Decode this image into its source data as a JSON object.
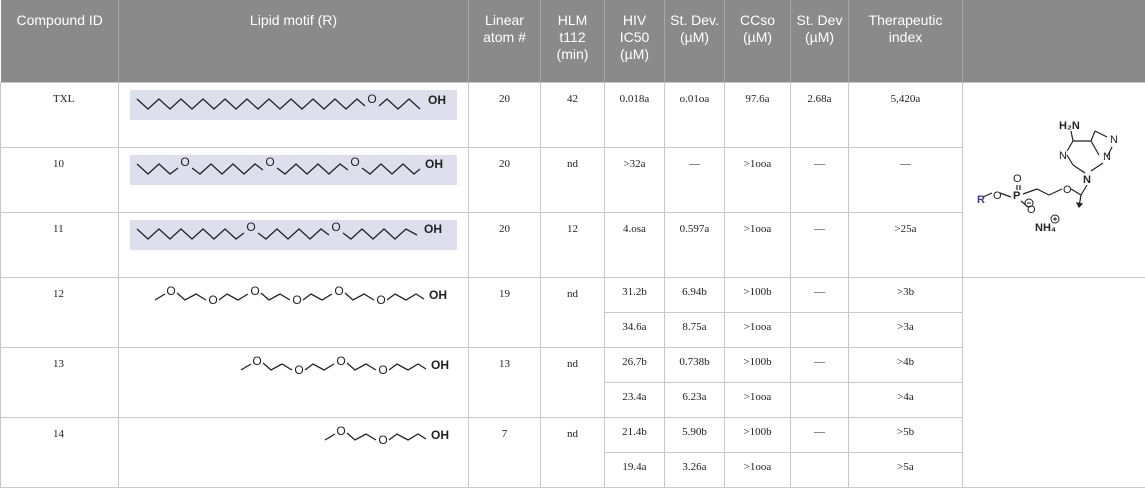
{
  "headers": {
    "compound_id": "Compound ID",
    "lipid_motif": "Lipid motif (R)",
    "linear_atom": "Linear atom #",
    "hlm": "HLM t112 (min)",
    "hiv_ic50": "HIV IC50 (µM)",
    "st_dev": "St. Dev. (µM)",
    "cc50": "CCso (µM)",
    "st_dev2": "St. Dev (µM)",
    "ti": "Therapeutic index"
  },
  "rows": [
    {
      "id": "TXL",
      "atoms": "20",
      "hlm": "42",
      "ic50": "0.018a",
      "sd": "o.01oa",
      "cc50": "97.6a",
      "sd2": "2.68a",
      "ti": "5,420a"
    },
    {
      "id": "10",
      "atoms": "20",
      "hlm": "nd",
      "ic50": ">32a",
      "sd": "—",
      "cc50": ">1ooa",
      "sd2": "—",
      "ti": "—"
    },
    {
      "id": "11",
      "atoms": "20",
      "hlm": "12",
      "ic50": "4.osa",
      "sd": "0.597a",
      "cc50": ">1ooa",
      "sd2": "—",
      "ti": ">25a"
    },
    {
      "id": "12",
      "atoms": "19",
      "hlm": "nd",
      "sub": [
        {
          "ic50": "31.2b",
          "sd": "6.94b",
          "cc50": ">100b",
          "sd2": "—",
          "ti": ">3b"
        },
        {
          "ic50": "34.6a",
          "sd": "8.75a",
          "cc50": ">1ooa",
          "sd2": "",
          "ti": ">3a"
        }
      ]
    },
    {
      "id": "13",
      "atoms": "13",
      "hlm": "nd",
      "sub": [
        {
          "ic50": "26.7b",
          "sd": "0.738b",
          "cc50": ">100b",
          "sd2": "—",
          "ti": ">4b"
        },
        {
          "ic50": "23.4a",
          "sd": "6.23a",
          "cc50": ">1ooa",
          "sd2": "",
          "ti": ">4a"
        }
      ]
    },
    {
      "id": "14",
      "atoms": "7",
      "hlm": "nd",
      "sub": [
        {
          "ic50": "21.4b",
          "sd": "5.90b",
          "cc50": ">100b",
          "sd2": "—",
          "ti": ">5b"
        },
        {
          "ic50": "19.4a",
          "sd": "3.26a",
          "cc50": ">1ooa",
          "sd2": "",
          "ti": ">5a"
        }
      ]
    }
  ],
  "motif_oh": "OH",
  "motif_o": "O",
  "structure": {
    "nh2": "H₂N",
    "r": "R",
    "o": "O",
    "p": "P",
    "nh4": "NH₄",
    "n": "N"
  },
  "colors": {
    "header_bg": "#8a8a8a",
    "highlight": "#dde0ec",
    "r_group": "#3b3b8f"
  }
}
